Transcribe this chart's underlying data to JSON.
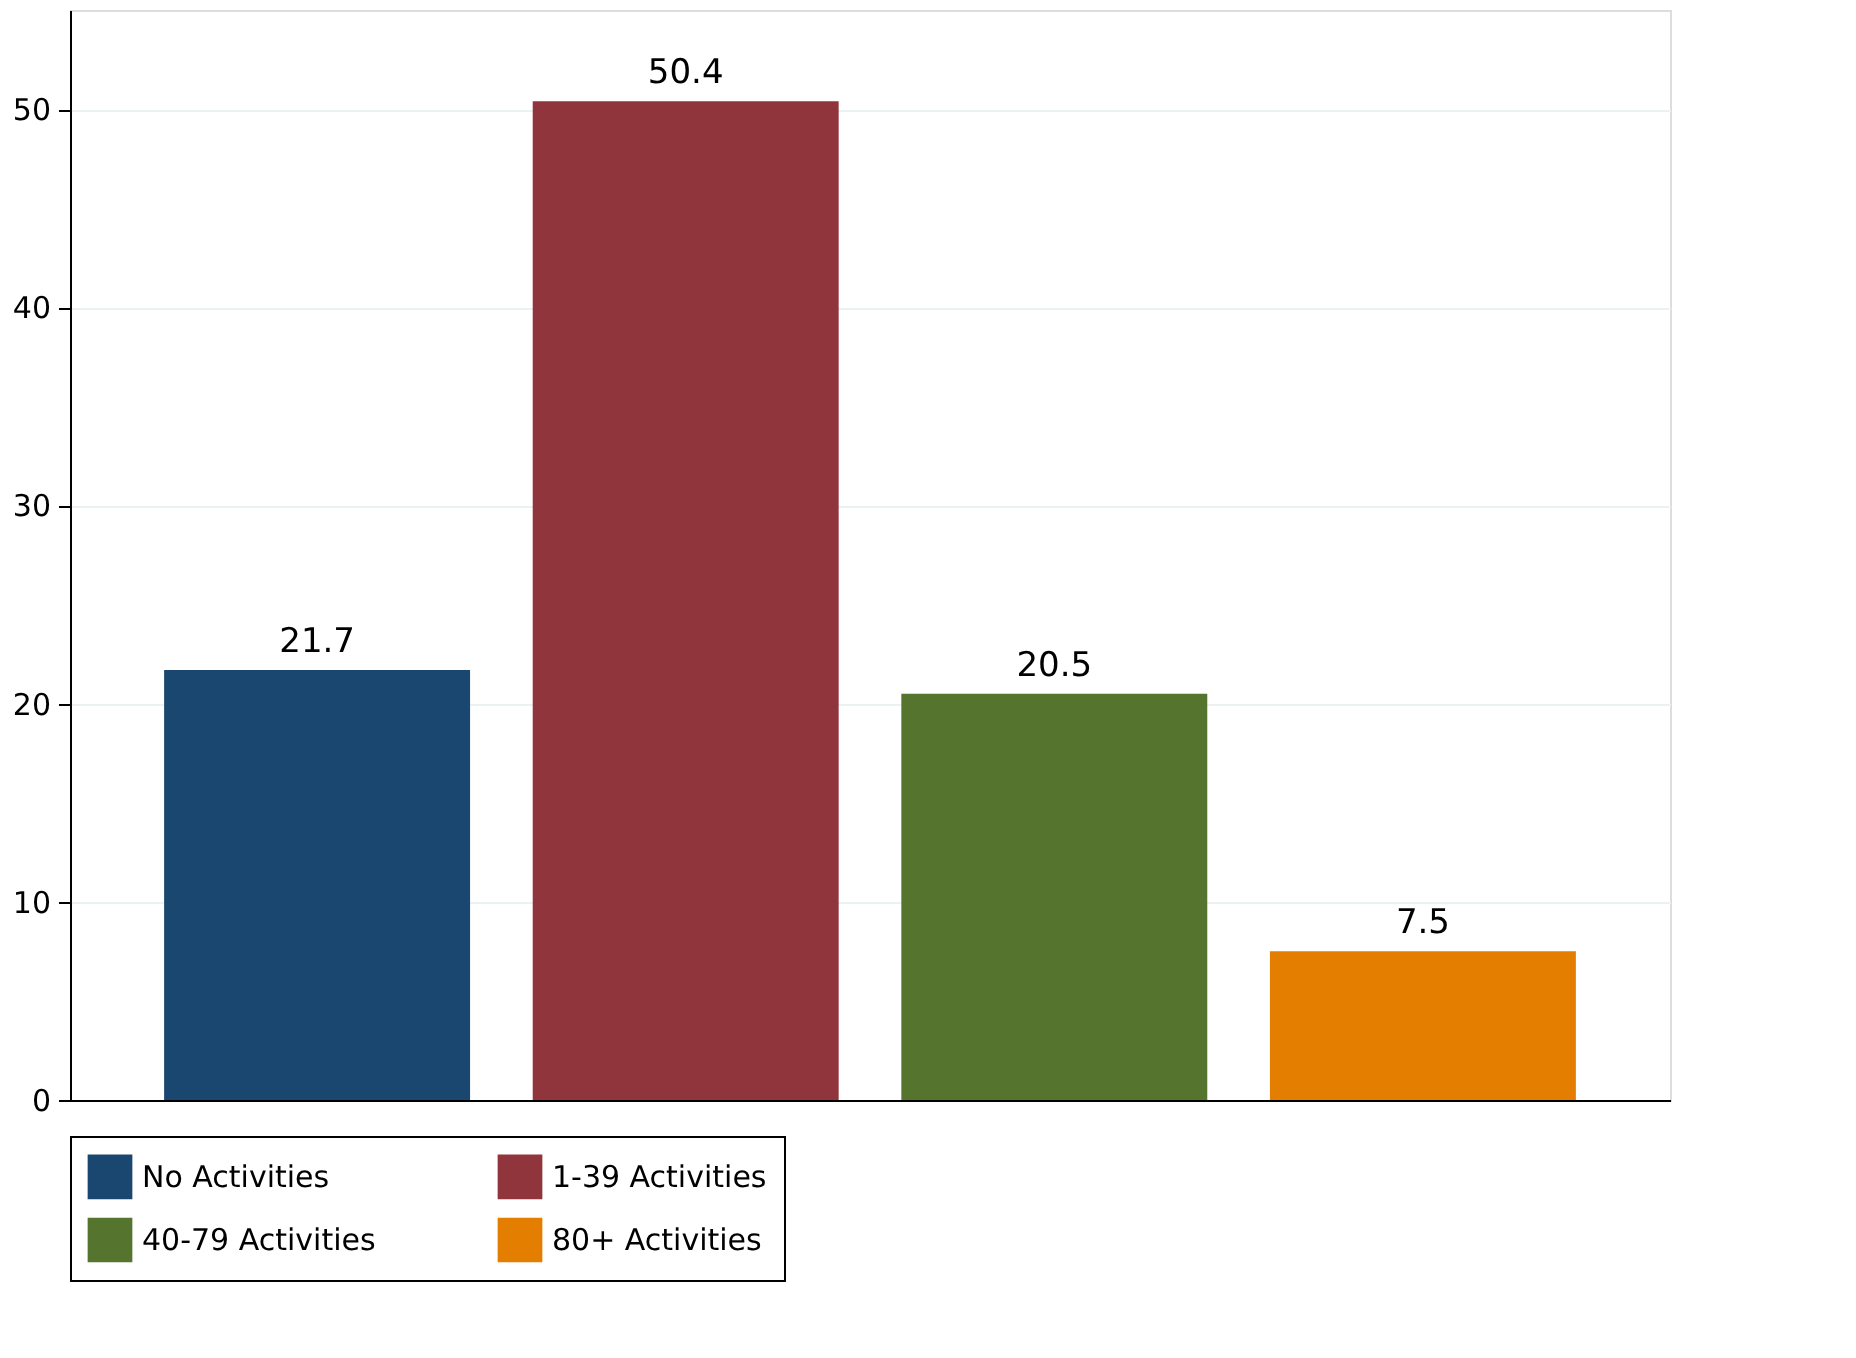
{
  "chart_data": {
    "type": "bar",
    "categories": [
      null
    ],
    "series": [
      {
        "name": "No Activities",
        "color": "#1a476f",
        "values": [
          21.7
        ]
      },
      {
        "name": "1-39 Activities",
        "color": "#90353b",
        "values": [
          50.4
        ]
      },
      {
        "name": "40-79 Activities",
        "color": "#55752f",
        "values": [
          20.5
        ]
      },
      {
        "name": "80+ Activities",
        "color": "#e37e00",
        "values": [
          7.5
        ]
      }
    ],
    "ylim": [
      0,
      55
    ],
    "yticks": [
      0,
      10,
      20,
      30,
      40,
      50
    ],
    "grid": "y",
    "legend": "bottom",
    "data_labels": true,
    "tick_labels": "y"
  }
}
